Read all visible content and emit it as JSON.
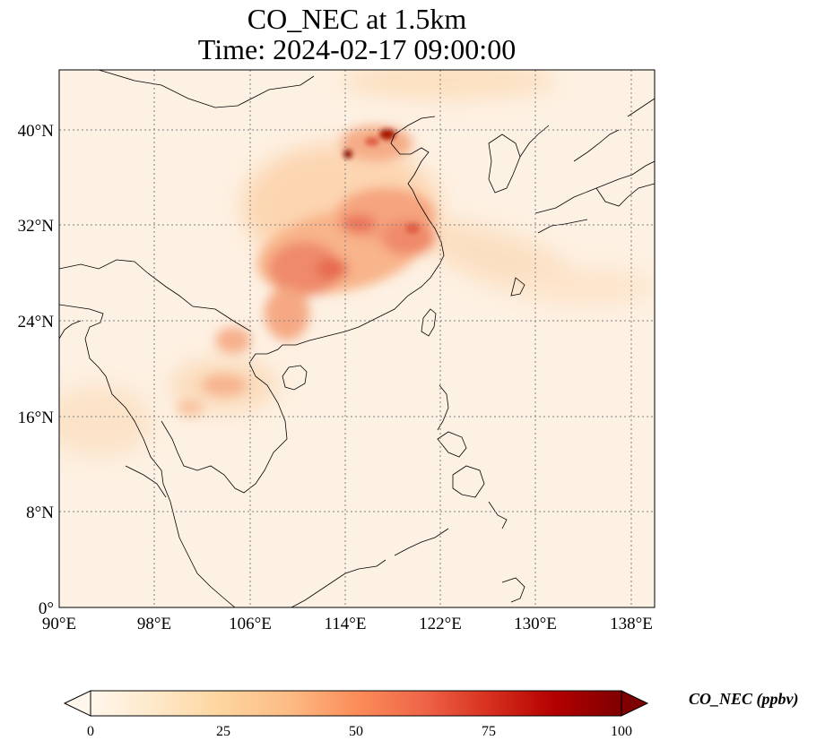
{
  "title": {
    "line1": "CO_NEC at 1.5km",
    "line2": "Time: 2024-02-17 09:00:00"
  },
  "map": {
    "projection": "PlateCarree",
    "lon_range": [
      90,
      140
    ],
    "lat_range": [
      0,
      45
    ],
    "gridlines": "dotted",
    "lon_ticks": [
      "90°E",
      "98°E",
      "106°E",
      "114°E",
      "122°E",
      "130°E",
      "138°E"
    ],
    "lat_ticks": [
      "0°",
      "8°N",
      "16°N",
      "24°N",
      "32°N",
      "40°N"
    ]
  },
  "colorbar": {
    "label": "CO_NEC (ppbv)",
    "colormap": "OrRd",
    "ticks": [
      "0",
      "25",
      "50",
      "75",
      "100"
    ],
    "extend": "both",
    "colors": [
      "#fff7ec",
      "#fee8c8",
      "#fdd49e",
      "#fdbb84",
      "#fc8d59",
      "#ef6548",
      "#d7301f",
      "#b30000",
      "#7f0000"
    ]
  }
}
